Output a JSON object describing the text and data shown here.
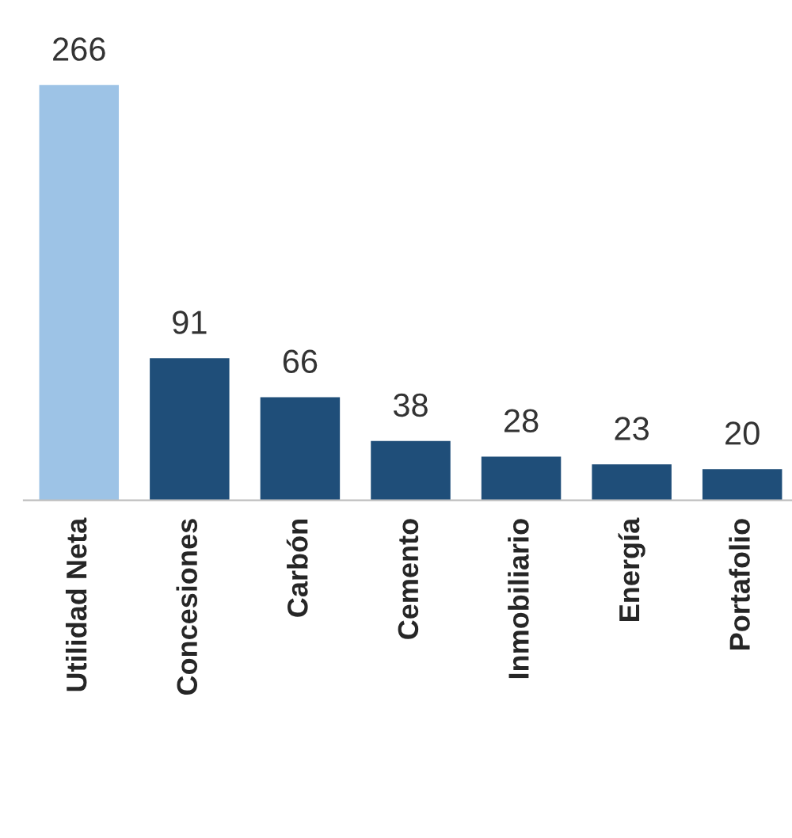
{
  "chart_data": {
    "type": "bar",
    "categories": [
      "Utilidad Neta",
      "Concesiones",
      "Carbón",
      "Cemento",
      "Inmobiliario",
      "Energía",
      "Portafolio"
    ],
    "values": [
      266,
      91,
      66,
      38,
      28,
      23,
      20
    ],
    "colors": [
      "#9dc3e6",
      "#1f4e79",
      "#1f4e79",
      "#1f4e79",
      "#1f4e79",
      "#1f4e79",
      "#1f4e79"
    ],
    "data_labels": true,
    "grid": false,
    "legend": false,
    "tick_labels": "x"
  }
}
